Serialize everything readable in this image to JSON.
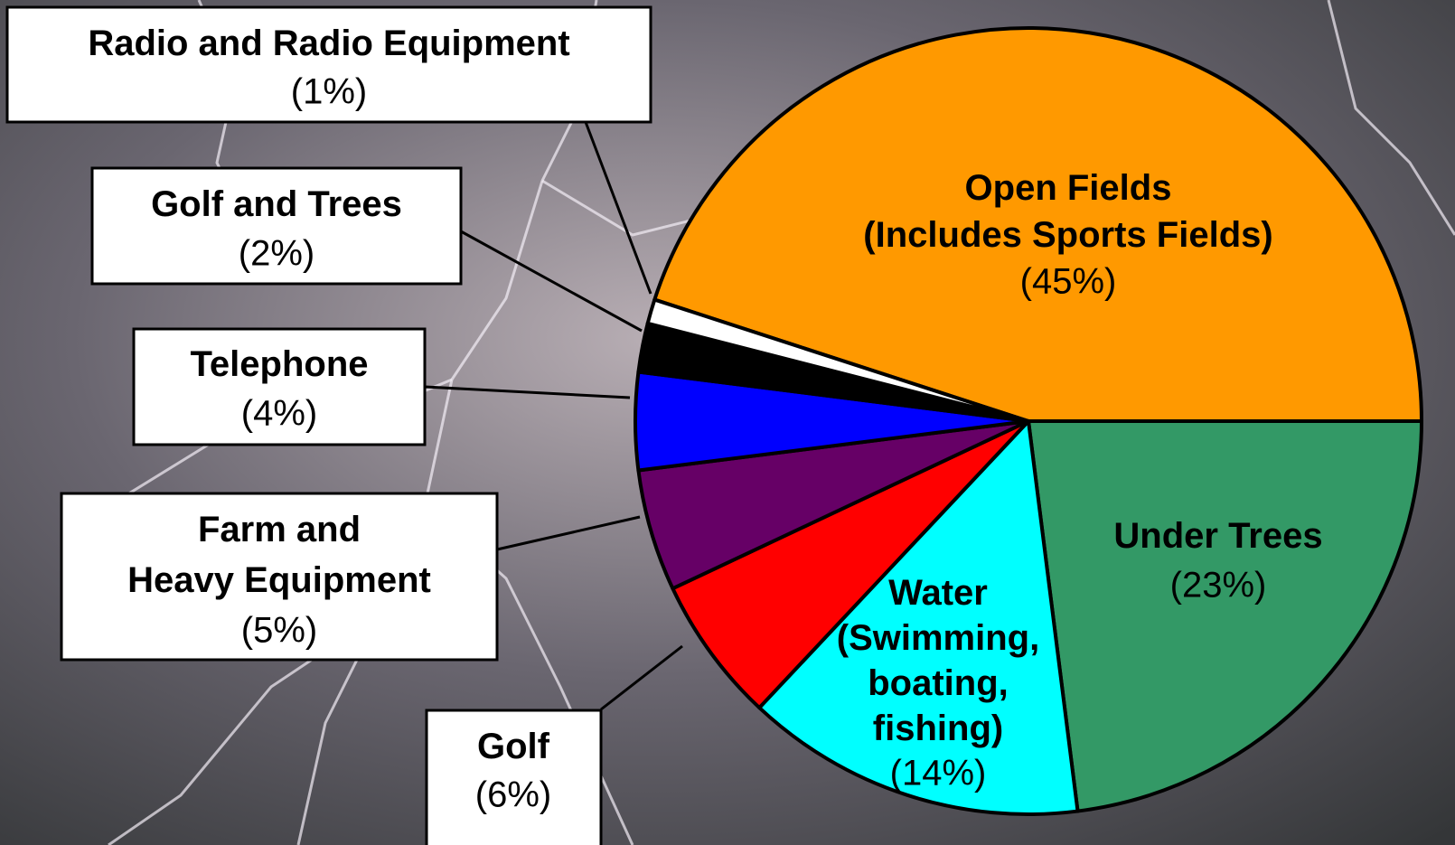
{
  "chart_data": {
    "type": "pie",
    "categories": [
      "Open Fields\n(Includes Sports Fields)",
      "Under Trees",
      "Water\n(Swimming,\nboating,\nfishing)",
      "Golf",
      "Farm and\nHeavy Equipment",
      "Telephone",
      "Golf and Trees",
      "Radio and Radio Equipment"
    ],
    "values": [
      45,
      23,
      14,
      6,
      5,
      4,
      2,
      1
    ],
    "value_labels": [
      "(45%)",
      "(23%)",
      "(14%)",
      "(6%)",
      "(5%)",
      "(4%)",
      "(2%)",
      "(1%)"
    ],
    "colors": [
      "#ff9900",
      "#339966",
      "#00ffff",
      "#ff0000",
      "#660066",
      "#0000ff",
      "#000000",
      "#ffffff"
    ]
  }
}
